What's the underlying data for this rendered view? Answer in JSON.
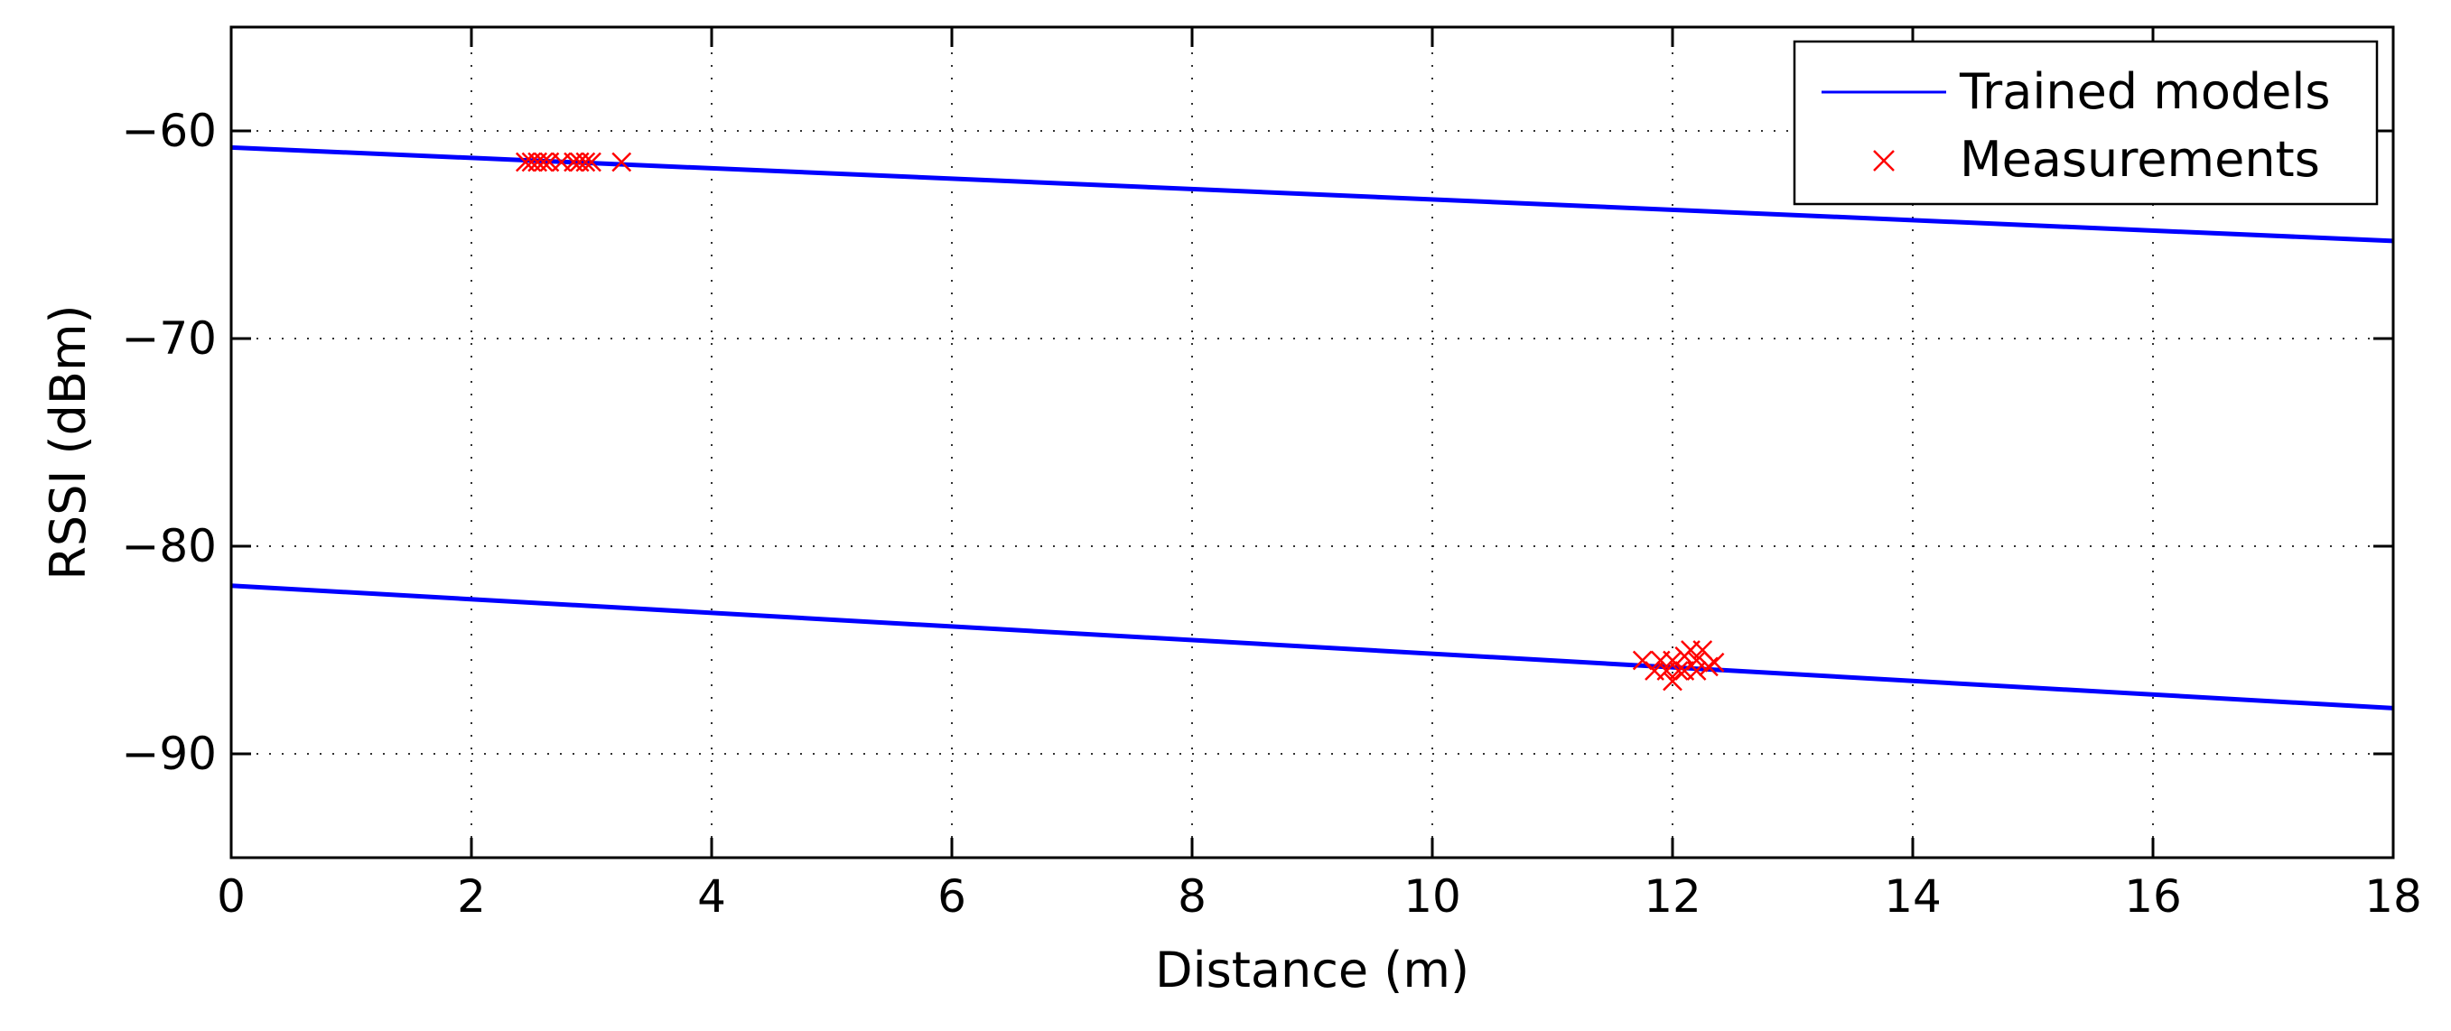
{
  "chart_data": {
    "type": "line",
    "title": "",
    "xlabel": "Distance (m)",
    "ylabel": "RSSI (dBm)",
    "xlim": [
      0,
      18
    ],
    "ylim": [
      -95,
      -55
    ],
    "xticks": [
      0,
      2,
      4,
      6,
      8,
      10,
      12,
      14,
      16,
      18
    ],
    "yticks": [
      -60,
      -70,
      -80,
      -90
    ],
    "xtick_labels": [
      "0",
      "2",
      "4",
      "6",
      "8",
      "10",
      "12",
      "14",
      "16",
      "18"
    ],
    "ytick_labels": [
      "−60",
      "−70",
      "−80",
      "−90"
    ],
    "grid": true,
    "legend_position": "top-right",
    "series": [
      {
        "name": "Trained models",
        "kind": "line",
        "color": "#0000ff",
        "lines": [
          {
            "x": [
              0,
              18
            ],
            "y": [
              -60.8,
              -65.3
            ]
          },
          {
            "x": [
              0,
              18
            ],
            "y": [
              -81.9,
              -87.8
            ]
          }
        ]
      },
      {
        "name": "Measurements",
        "kind": "scatter",
        "marker": "x",
        "color": "#ff0000",
        "x": [
          2.45,
          2.5,
          2.55,
          2.6,
          2.65,
          2.75,
          2.85,
          2.9,
          2.95,
          3.0,
          3.25,
          11.75,
          11.85,
          11.9,
          11.95,
          12.0,
          12.0,
          12.05,
          12.1,
          12.1,
          12.15,
          12.2,
          12.2,
          12.25,
          12.3,
          12.35
        ],
        "y": [
          -61.5,
          -61.5,
          -61.5,
          -61.5,
          -61.5,
          -61.5,
          -61.5,
          -61.5,
          -61.5,
          -61.5,
          -61.5,
          -85.5,
          -86.0,
          -85.5,
          -86.0,
          -85.5,
          -86.5,
          -86.0,
          -85.3,
          -86.0,
          -85.0,
          -85.5,
          -86.0,
          -85.0,
          -85.8,
          -85.6
        ]
      }
    ]
  }
}
